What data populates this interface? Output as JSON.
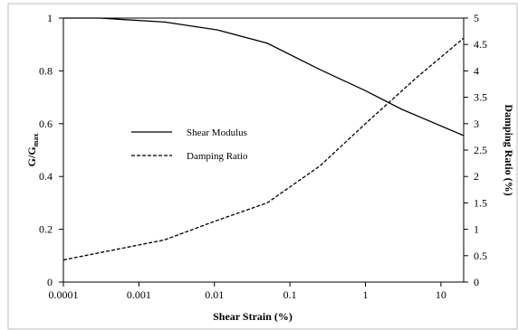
{
  "chart_data": {
    "type": "line",
    "x_scale": "log",
    "xlabel": "Shear Strain (%)",
    "ylabel_left_main": "G/G",
    "ylabel_left_sub": "max",
    "ylabel_right": "Damping Ratio (%)",
    "xlim": [
      0.0001,
      20
    ],
    "ylim_left": [
      0,
      1
    ],
    "ylim_right": [
      0,
      5
    ],
    "x_ticks": [
      {
        "value": 0.0001,
        "label": "0.0001"
      },
      {
        "value": 0.001,
        "label": "0.001"
      },
      {
        "value": 0.01,
        "label": "0.01"
      },
      {
        "value": 0.1,
        "label": "0.1"
      },
      {
        "value": 1,
        "label": "1"
      },
      {
        "value": 10,
        "label": "10"
      }
    ],
    "y_left_ticks": [
      {
        "value": 0,
        "label": "0"
      },
      {
        "value": 0.2,
        "label": "0.2"
      },
      {
        "value": 0.4,
        "label": "0.4"
      },
      {
        "value": 0.6,
        "label": "0.6"
      },
      {
        "value": 0.8,
        "label": "0.8"
      },
      {
        "value": 1,
        "label": "1"
      }
    ],
    "y_right_ticks": [
      {
        "value": 0,
        "label": "0"
      },
      {
        "value": 0.5,
        "label": "0.5"
      },
      {
        "value": 1,
        "label": "1"
      },
      {
        "value": 1.5,
        "label": "1.5"
      },
      {
        "value": 2,
        "label": "2"
      },
      {
        "value": 2.5,
        "label": "2.5"
      },
      {
        "value": 3,
        "label": "3"
      },
      {
        "value": 3.5,
        "label": "3.5"
      },
      {
        "value": 4,
        "label": "4"
      },
      {
        "value": 4.5,
        "label": "4.5"
      },
      {
        "value": 5,
        "label": "5"
      }
    ],
    "grid": false,
    "legend_position": "middle-left",
    "series": [
      {
        "name": "Shear Modulus",
        "axis": "left",
        "line_style": "solid",
        "color": "#000000",
        "points": [
          {
            "x": 0.0001,
            "y": 1.0
          },
          {
            "x": 0.0003,
            "y": 1.0
          },
          {
            "x": 0.0022,
            "y": 0.985
          },
          {
            "x": 0.011,
            "y": 0.955
          },
          {
            "x": 0.05,
            "y": 0.905
          },
          {
            "x": 0.25,
            "y": 0.805
          },
          {
            "x": 1.0,
            "y": 0.725
          },
          {
            "x": 3.0,
            "y": 0.655
          },
          {
            "x": 20,
            "y": 0.555
          }
        ]
      },
      {
        "name": "Damping Ratio",
        "axis": "right",
        "line_style": "dashed",
        "color": "#000000",
        "points": [
          {
            "x": 0.0001,
            "y": 0.42
          },
          {
            "x": 0.0022,
            "y": 0.8
          },
          {
            "x": 0.01,
            "y": 1.15
          },
          {
            "x": 0.05,
            "y": 1.5
          },
          {
            "x": 0.25,
            "y": 2.2
          },
          {
            "x": 1.0,
            "y": 3.0
          },
          {
            "x": 5.0,
            "y": 3.9
          },
          {
            "x": 20,
            "y": 4.62
          }
        ]
      }
    ]
  }
}
